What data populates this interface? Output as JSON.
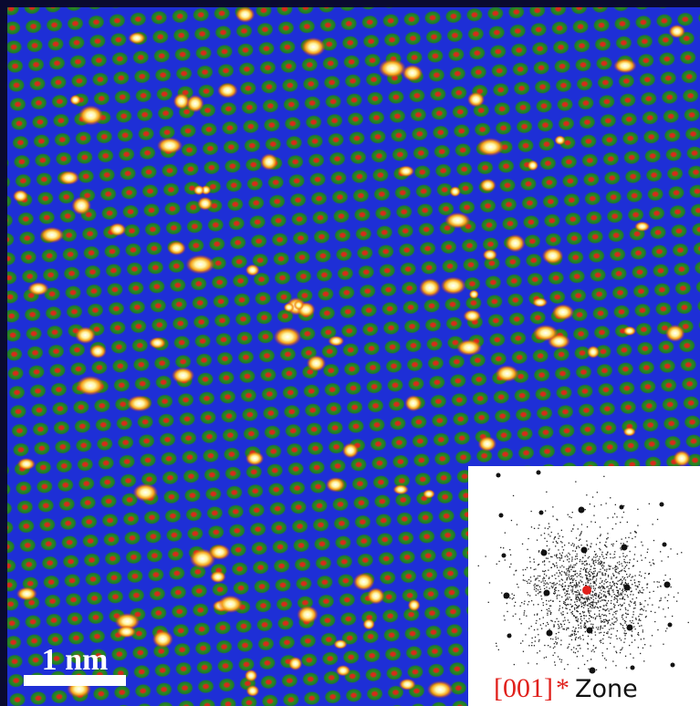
{
  "scale_bar": {
    "label": "1 nm"
  },
  "inset": {
    "zone_axis": "[001]",
    "star": "*",
    "zone": "Zone"
  }
}
